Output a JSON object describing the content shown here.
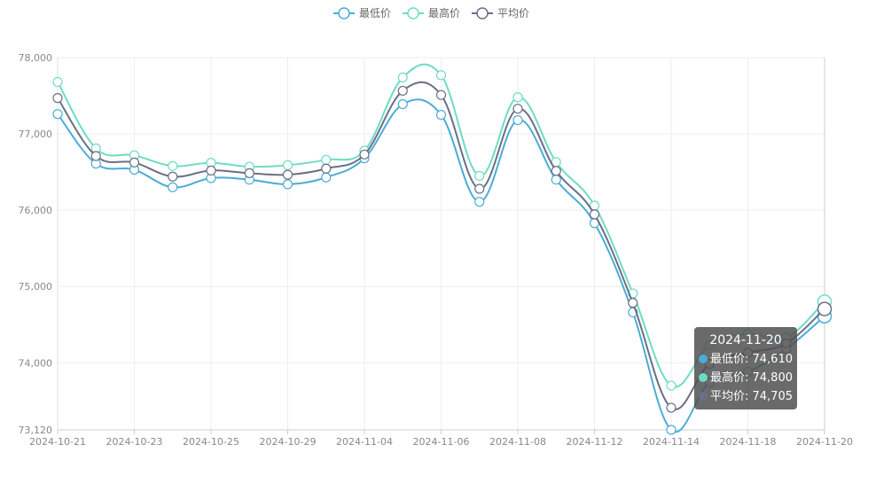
{
  "chart_data": {
    "type": "line",
    "x": [
      "2024-10-21",
      "2024-10-22",
      "2024-10-23",
      "2024-10-24",
      "2024-10-25",
      "2024-10-28",
      "2024-10-29",
      "2024-10-30",
      "2024-11-04",
      "2024-11-05",
      "2024-11-06",
      "2024-11-07",
      "2024-11-08",
      "2024-11-11",
      "2024-11-12",
      "2024-11-13",
      "2024-11-14",
      "2024-11-15",
      "2024-11-18",
      "2024-11-19",
      "2024-11-20"
    ],
    "xticks": [
      "2024-10-21",
      "2024-10-23",
      "2024-10-25",
      "2024-10-29",
      "2024-11-04",
      "2024-11-06",
      "2024-11-08",
      "2024-11-12",
      "2024-11-14",
      "2024-11-18",
      "2024-11-20"
    ],
    "series": [
      {
        "name": "最低价",
        "color": "#4bacd6",
        "values": [
          77260,
          76610,
          76530,
          76300,
          76420,
          76400,
          76340,
          76430,
          76680,
          77390,
          77250,
          76110,
          77180,
          76400,
          75830,
          74660,
          73120,
          73740,
          73880,
          74180,
          74610
        ]
      },
      {
        "name": "最高价",
        "color": "#6edcc4",
        "values": [
          77680,
          76810,
          76720,
          76580,
          76620,
          76570,
          76590,
          76660,
          76780,
          77740,
          77770,
          76450,
          77480,
          76630,
          76060,
          74910,
          73700,
          74230,
          74380,
          74330,
          74800
        ]
      },
      {
        "name": "平均价",
        "color": "#6b6f85",
        "values": [
          77470,
          76710,
          76625,
          76440,
          76520,
          76485,
          76465,
          76545,
          76730,
          77565,
          77510,
          76280,
          77330,
          76515,
          75945,
          74785,
          73410,
          73985,
          74130,
          74255,
          74705
        ]
      }
    ],
    "title": "",
    "xlabel": "",
    "ylabel": "",
    "ylim": [
      73120,
      78000
    ],
    "yticks": [
      "73,120",
      "74,000",
      "75,000",
      "76,000",
      "77,000",
      "78,000"
    ],
    "ytick_values": [
      73120,
      74000,
      75000,
      76000,
      77000,
      78000
    ],
    "grid": true,
    "legend": "top-center"
  },
  "tooltip": {
    "title": "2024-11-20",
    "rows": [
      {
        "text": "最低价: 74,610",
        "color": "#4bacd6"
      },
      {
        "text": "最高价: 74,800",
        "color": "#6edcc4"
      },
      {
        "text": "平均价: 74,705",
        "color": "#6b6f85"
      }
    ]
  }
}
